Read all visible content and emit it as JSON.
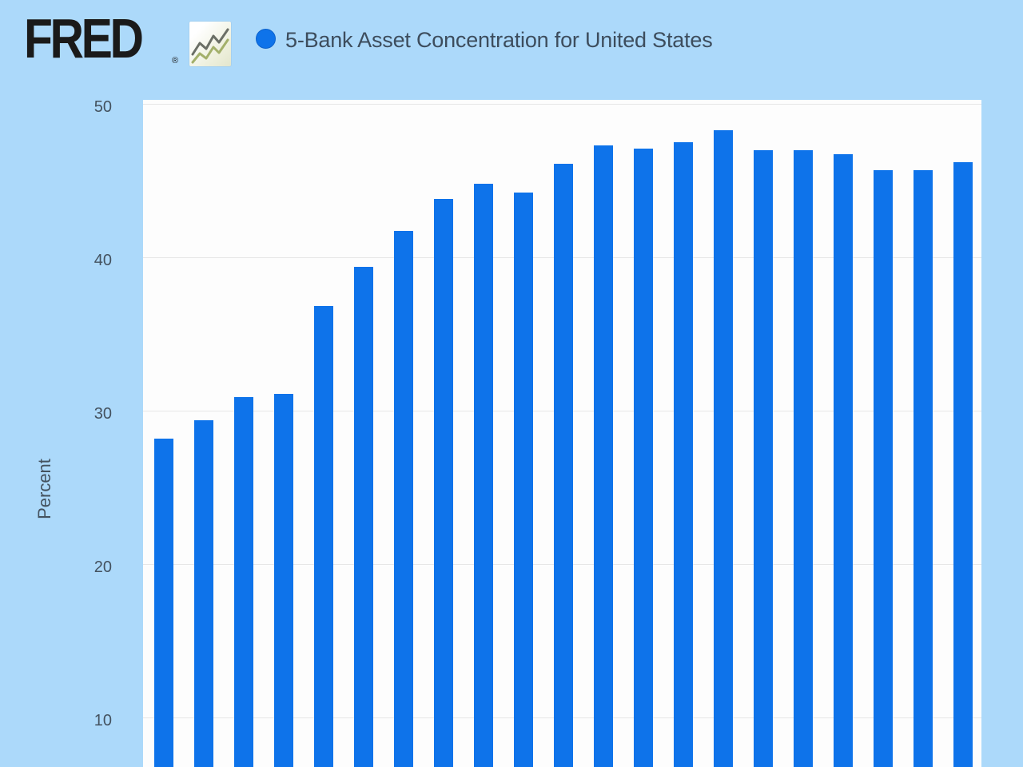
{
  "header": {
    "logo_text": "FRED",
    "logo_trademark": "®",
    "icon": "fred-sparkline-icon",
    "legend_marker_color": "#0e73ea",
    "title": "5-Bank Asset Concentration for United States"
  },
  "chart_data": {
    "type": "bar",
    "title": "5-Bank Asset Concentration for United States",
    "ylabel": "Percent",
    "xlabel": "",
    "x_tick_labels_visible": false,
    "yticks": [
      50,
      40,
      30,
      20,
      10
    ],
    "ylim_visible": [
      6.8,
      50
    ],
    "grid": true,
    "legend_position": "top",
    "bar_color": "#0e73ea",
    "values": [
      28.2,
      29.4,
      30.9,
      31.1,
      36.8,
      39.4,
      41.7,
      43.8,
      44.8,
      44.2,
      46.1,
      47.3,
      47.1,
      47.5,
      48.3,
      47.0,
      47.0,
      46.7,
      45.7,
      45.7,
      46.2
    ]
  },
  "colors": {
    "background": "#acd9fa",
    "plot_background": "#fdfdfd",
    "gridline": "#e7e7e7",
    "bar": "#0e73ea",
    "text": "#3d4d5d",
    "logo": "#1a1a1a"
  }
}
